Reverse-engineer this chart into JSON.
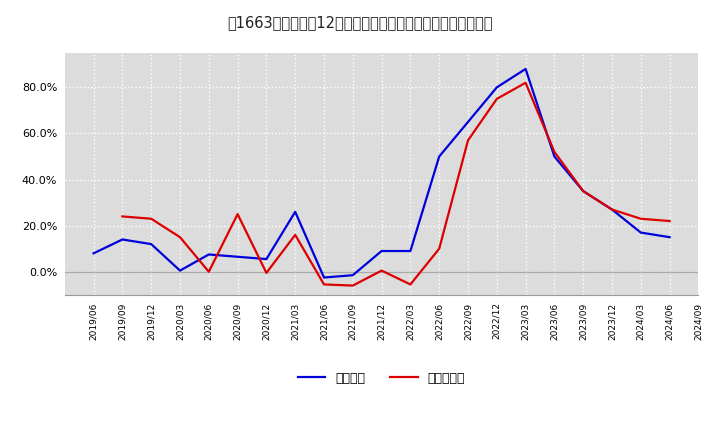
{
  "x_labels": [
    "2019/06",
    "2019/09",
    "2019/12",
    "2020/03",
    "2020/06",
    "2020/09",
    "2020/12",
    "2021/03",
    "2021/06",
    "2021/09",
    "2021/12",
    "2022/03",
    "2022/06",
    "2022/09",
    "2022/12",
    "2023/03",
    "2023/06",
    "2023/09",
    "2023/12",
    "2024/03",
    "2024/06",
    "2024/09"
  ],
  "blue_values": [
    8.0,
    14.0,
    12.0,
    0.5,
    7.5,
    6.5,
    5.5,
    26.0,
    -2.5,
    -1.5,
    9.0,
    9.0,
    50.0,
    65.0,
    80.0,
    88.0,
    50.0,
    35.0,
    27.0,
    17.0,
    15.0,
    null
  ],
  "red_values": [
    null,
    24.0,
    23.0,
    15.0,
    0.0,
    25.0,
    -0.5,
    16.0,
    -5.5,
    -6.0,
    0.5,
    -5.5,
    10.0,
    57.0,
    75.0,
    82.0,
    52.0,
    35.0,
    27.0,
    23.0,
    22.0,
    null
  ],
  "blue_color": "#0000dd",
  "red_color": "#dd0000",
  "bg_color": "#ffffff",
  "plot_bg_color": "#dcdcdc",
  "grid_color": "#ffffff",
  "zero_line_color": "#aaaaaa",
  "legend_blue": "経常利益",
  "legend_red": "当期純利益",
  "ylim": [
    -10,
    95
  ],
  "yticks": [
    0.0,
    20.0,
    40.0,
    60.0,
    80.0
  ]
}
